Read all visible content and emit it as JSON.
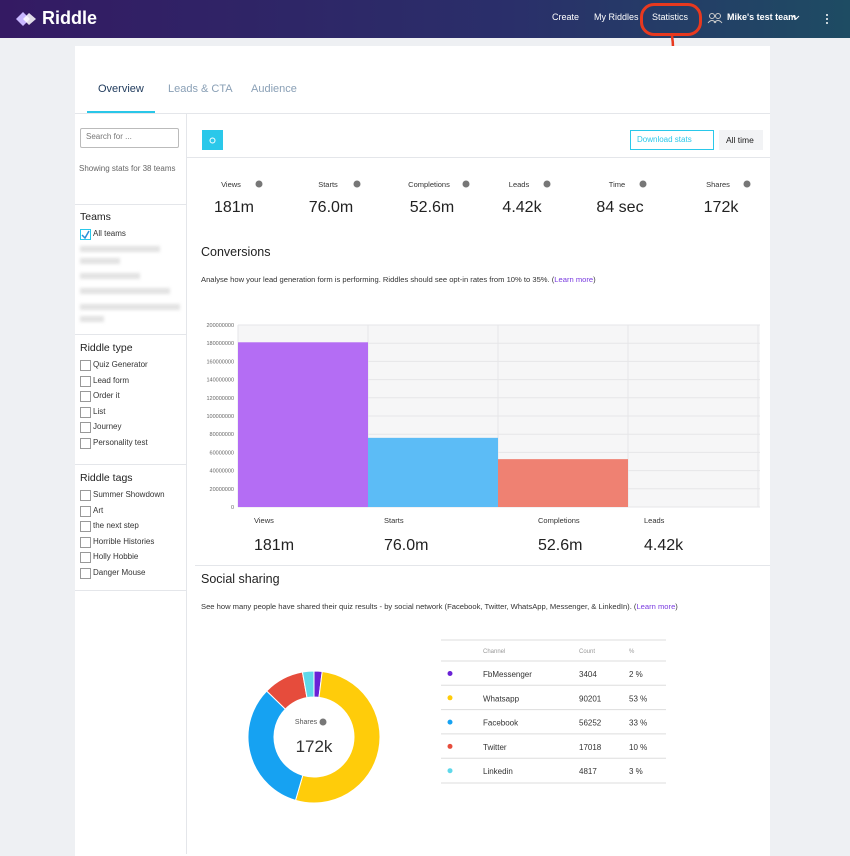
{
  "nav": {
    "brand": "Riddle",
    "links": [
      "Create",
      "My Riddles",
      "Statistics"
    ],
    "team": "Mike's test team"
  },
  "tabs": [
    "Overview",
    "Leads & CTA",
    "Audience"
  ],
  "sidebar": {
    "search_placeholder": "Search for ...",
    "showing": "Showing stats for 38 teams",
    "groups": [
      {
        "title": "Teams",
        "items": [
          "All teams"
        ]
      },
      {
        "title": "Riddle type",
        "items": [
          "Quiz Generator",
          "Lead form",
          "Order it",
          "List",
          "Journey",
          "Personality test"
        ]
      },
      {
        "title": "Riddle tags",
        "items": [
          "Summer Showdown",
          "Art",
          "the next step",
          "Horrible Histories",
          "Holly Hobbie",
          "Danger Mouse"
        ]
      }
    ]
  },
  "toolbar": {
    "download": "Download stats",
    "range": "All time"
  },
  "stats": [
    {
      "label": "Views",
      "value": "181m"
    },
    {
      "label": "Starts",
      "value": "76.0m"
    },
    {
      "label": "Completions",
      "value": "52.6m"
    },
    {
      "label": "Leads",
      "value": "4.42k"
    },
    {
      "label": "Time",
      "value": "84 sec"
    },
    {
      "label": "Shares",
      "value": "172k"
    }
  ],
  "conversions": {
    "title": "Conversions",
    "description": "Analyse how your lead generation form is performing. Riddles should see opt-in rates from 10% to 35%. (",
    "learn_more": "Learn more",
    "description_end": ")",
    "chart_data": {
      "type": "bar",
      "categories": [
        "Views",
        "Starts",
        "Completions",
        "Leads"
      ],
      "values": [
        181000000,
        76000000,
        52600000,
        4420
      ],
      "value_labels": [
        "181m",
        "76.0m",
        "52.6m",
        "4.42k"
      ],
      "colors": [
        "#b46df4",
        "#5cbcf6",
        "#ef8172",
        "#f5a25d"
      ],
      "ylim": [
        0,
        200000000
      ],
      "yticks": [
        0,
        20000000,
        40000000,
        60000000,
        80000000,
        100000000,
        120000000,
        140000000,
        160000000,
        180000000,
        200000000
      ],
      "grid": true
    }
  },
  "social": {
    "title": "Social sharing",
    "description": "See how many people have shared their quiz results - by social network (Facebook, Twitter, WhatsApp, Messenger, & LinkedIn). (",
    "learn_more": "Learn more",
    "description_end": ")",
    "donut": {
      "center_label": "Shares",
      "center_value": "172k"
    },
    "table": {
      "headers": [
        "Channel",
        "Count",
        "%"
      ],
      "rows": [
        {
          "name": "FbMessenger",
          "count": 3404,
          "percent": "2 %",
          "color": "#6a22d6"
        },
        {
          "name": "Whatsapp",
          "count": 90201,
          "percent": "53 %",
          "color": "#ffcc0a"
        },
        {
          "name": "Facebook",
          "count": 56252,
          "percent": "33 %",
          "color": "#16a2f2"
        },
        {
          "name": "Twitter",
          "count": 17018,
          "percent": "10 %",
          "color": "#e64c3c"
        },
        {
          "name": "Linkedin",
          "count": 4817,
          "percent": "3 %",
          "color": "#5fd8ea"
        }
      ]
    }
  }
}
